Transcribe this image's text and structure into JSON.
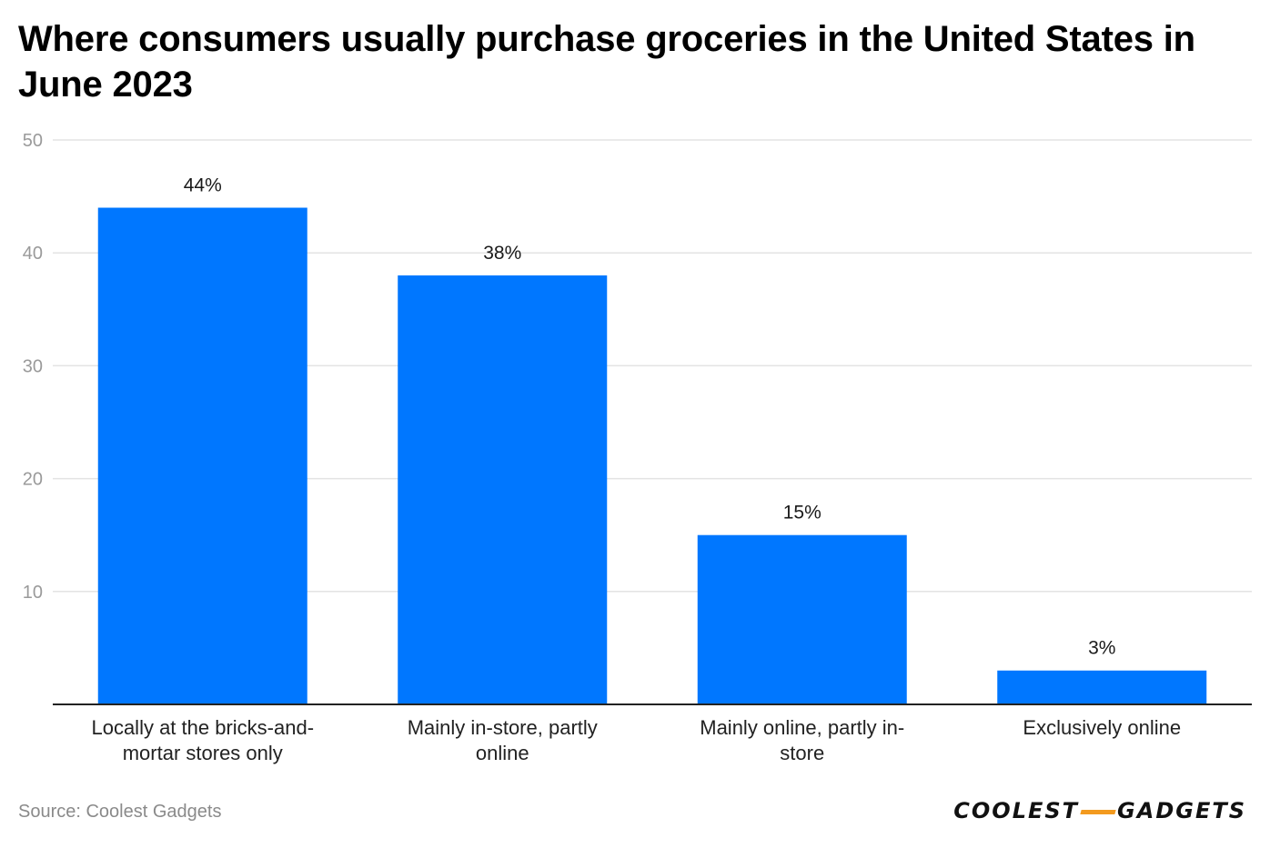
{
  "title": "Where consumers usually purchase groceries in the United States in June 2023",
  "source": "Source: Coolest Gadgets",
  "logo": {
    "left": "COOLEST",
    "right": "GADGETS",
    "dash_color": "#f39a1f"
  },
  "colors": {
    "bar": "#0077ff",
    "grid": "#e3e3e3",
    "axis": "#222222",
    "tick_label": "#9a9a9a"
  },
  "chart_data": {
    "type": "bar",
    "title": "Where consumers usually purchase groceries in the United States in June 2023",
    "xlabel": "",
    "ylabel": "",
    "ylim": [
      0,
      50
    ],
    "yticks": [
      10,
      20,
      30,
      40,
      50
    ],
    "grid": true,
    "categories": [
      [
        "Locally at the bricks-and-",
        "mortar stores only"
      ],
      [
        "Mainly in-store, partly",
        "online"
      ],
      [
        "Mainly online, partly in-",
        "store"
      ],
      [
        "Exclusively online"
      ]
    ],
    "values": [
      44,
      38,
      15,
      3
    ],
    "data_labels": [
      "44%",
      "38%",
      "15%",
      "3%"
    ]
  }
}
